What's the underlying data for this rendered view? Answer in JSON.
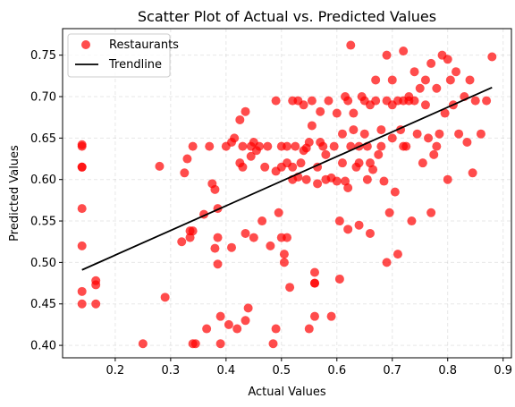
{
  "chart_data": {
    "type": "scatter",
    "title": "Scatter Plot of Actual vs. Predicted Values",
    "xlabel": "Actual Values",
    "ylabel": "Predicted Values",
    "xlim": [
      0.105,
      0.915
    ],
    "ylim": [
      0.385,
      0.782
    ],
    "xticks": [
      0.2,
      0.3,
      0.4,
      0.5,
      0.6,
      0.7,
      0.8,
      0.9
    ],
    "xtick_labels": [
      "0.2",
      "0.3",
      "0.4",
      "0.5",
      "0.6",
      "0.7",
      "0.8",
      "0.9"
    ],
    "yticks": [
      0.4,
      0.45,
      0.5,
      0.55,
      0.6,
      0.65,
      0.7,
      0.75
    ],
    "ytick_labels": [
      "0.40",
      "0.45",
      "0.50",
      "0.55",
      "0.60",
      "0.65",
      "0.70",
      "0.75"
    ],
    "grid": true,
    "legend_position": "top-left",
    "series": [
      {
        "name": "Restaurants",
        "kind": "scatter",
        "color": "#ff0000",
        "points": [
          [
            0.14,
            0.64
          ],
          [
            0.14,
            0.615
          ],
          [
            0.14,
            0.565
          ],
          [
            0.14,
            0.52
          ],
          [
            0.14,
            0.465
          ],
          [
            0.14,
            0.45
          ],
          [
            0.14,
            0.642
          ],
          [
            0.14,
            0.615
          ],
          [
            0.165,
            0.478
          ],
          [
            0.165,
            0.473
          ],
          [
            0.165,
            0.45
          ],
          [
            0.25,
            0.402
          ],
          [
            0.28,
            0.616
          ],
          [
            0.29,
            0.458
          ],
          [
            0.32,
            0.525
          ],
          [
            0.325,
            0.608
          ],
          [
            0.33,
            0.625
          ],
          [
            0.335,
            0.53
          ],
          [
            0.335,
            0.538
          ],
          [
            0.34,
            0.402
          ],
          [
            0.34,
            0.64
          ],
          [
            0.345,
            0.402
          ],
          [
            0.34,
            0.538
          ],
          [
            0.36,
            0.558
          ],
          [
            0.365,
            0.42
          ],
          [
            0.37,
            0.64
          ],
          [
            0.375,
            0.595
          ],
          [
            0.38,
            0.588
          ],
          [
            0.38,
            0.517
          ],
          [
            0.385,
            0.498
          ],
          [
            0.385,
            0.565
          ],
          [
            0.385,
            0.53
          ],
          [
            0.39,
            0.435
          ],
          [
            0.39,
            0.402
          ],
          [
            0.4,
            0.64
          ],
          [
            0.405,
            0.425
          ],
          [
            0.41,
            0.645
          ],
          [
            0.41,
            0.518
          ],
          [
            0.415,
            0.65
          ],
          [
            0.42,
            0.42
          ],
          [
            0.425,
            0.672
          ],
          [
            0.425,
            0.62
          ],
          [
            0.43,
            0.64
          ],
          [
            0.43,
            0.615
          ],
          [
            0.435,
            0.535
          ],
          [
            0.435,
            0.43
          ],
          [
            0.435,
            0.682
          ],
          [
            0.44,
            0.445
          ],
          [
            0.445,
            0.64
          ],
          [
            0.445,
            0.628
          ],
          [
            0.45,
            0.645
          ],
          [
            0.45,
            0.53
          ],
          [
            0.455,
            0.635
          ],
          [
            0.46,
            0.64
          ],
          [
            0.465,
            0.55
          ],
          [
            0.47,
            0.615
          ],
          [
            0.475,
            0.64
          ],
          [
            0.48,
            0.52
          ],
          [
            0.485,
            0.402
          ],
          [
            0.49,
            0.61
          ],
          [
            0.49,
            0.42
          ],
          [
            0.49,
            0.695
          ],
          [
            0.495,
            0.56
          ],
          [
            0.5,
            0.64
          ],
          [
            0.5,
            0.615
          ],
          [
            0.5,
            0.53
          ],
          [
            0.505,
            0.51
          ],
          [
            0.505,
            0.5
          ],
          [
            0.51,
            0.64
          ],
          [
            0.51,
            0.62
          ],
          [
            0.51,
            0.53
          ],
          [
            0.515,
            0.47
          ],
          [
            0.52,
            0.695
          ],
          [
            0.52,
            0.615
          ],
          [
            0.52,
            0.6
          ],
          [
            0.525,
            0.64
          ],
          [
            0.53,
            0.603
          ],
          [
            0.53,
            0.695
          ],
          [
            0.535,
            0.62
          ],
          [
            0.54,
            0.635
          ],
          [
            0.54,
            0.69
          ],
          [
            0.545,
            0.638
          ],
          [
            0.545,
            0.6
          ],
          [
            0.55,
            0.645
          ],
          [
            0.55,
            0.42
          ],
          [
            0.555,
            0.665
          ],
          [
            0.555,
            0.695
          ],
          [
            0.56,
            0.488
          ],
          [
            0.56,
            0.475
          ],
          [
            0.56,
            0.435
          ],
          [
            0.56,
            0.475
          ],
          [
            0.565,
            0.615
          ],
          [
            0.565,
            0.595
          ],
          [
            0.57,
            0.682
          ],
          [
            0.57,
            0.645
          ],
          [
            0.575,
            0.64
          ],
          [
            0.58,
            0.63
          ],
          [
            0.58,
            0.6
          ],
          [
            0.585,
            0.695
          ],
          [
            0.59,
            0.435
          ],
          [
            0.59,
            0.602
          ],
          [
            0.595,
            0.64
          ],
          [
            0.6,
            0.598
          ],
          [
            0.6,
            0.68
          ],
          [
            0.605,
            0.55
          ],
          [
            0.605,
            0.48
          ],
          [
            0.61,
            0.62
          ],
          [
            0.61,
            0.655
          ],
          [
            0.615,
            0.7
          ],
          [
            0.615,
            0.598
          ],
          [
            0.62,
            0.59
          ],
          [
            0.62,
            0.54
          ],
          [
            0.625,
            0.762
          ],
          [
            0.625,
            0.64
          ],
          [
            0.63,
            0.68
          ],
          [
            0.63,
            0.66
          ],
          [
            0.635,
            0.615
          ],
          [
            0.64,
            0.545
          ],
          [
            0.64,
            0.62
          ],
          [
            0.645,
            0.7
          ],
          [
            0.65,
            0.695
          ],
          [
            0.65,
            0.655
          ],
          [
            0.655,
            0.64
          ],
          [
            0.655,
            0.6
          ],
          [
            0.66,
            0.69
          ],
          [
            0.66,
            0.535
          ],
          [
            0.665,
            0.612
          ],
          [
            0.67,
            0.72
          ],
          [
            0.675,
            0.63
          ],
          [
            0.68,
            0.66
          ],
          [
            0.685,
            0.598
          ],
          [
            0.69,
            0.75
          ],
          [
            0.69,
            0.5
          ],
          [
            0.695,
            0.56
          ],
          [
            0.7,
            0.72
          ],
          [
            0.7,
            0.65
          ],
          [
            0.705,
            0.585
          ],
          [
            0.71,
            0.51
          ],
          [
            0.715,
            0.66
          ],
          [
            0.72,
            0.755
          ],
          [
            0.72,
            0.695
          ],
          [
            0.725,
            0.64
          ],
          [
            0.73,
            0.7
          ],
          [
            0.735,
            0.55
          ],
          [
            0.74,
            0.73
          ],
          [
            0.745,
            0.655
          ],
          [
            0.75,
            0.71
          ],
          [
            0.755,
            0.62
          ],
          [
            0.76,
            0.69
          ],
          [
            0.765,
            0.65
          ],
          [
            0.77,
            0.74
          ],
          [
            0.77,
            0.56
          ],
          [
            0.775,
            0.63
          ],
          [
            0.78,
            0.71
          ],
          [
            0.785,
            0.655
          ],
          [
            0.79,
            0.75
          ],
          [
            0.795,
            0.68
          ],
          [
            0.8,
            0.745
          ],
          [
            0.8,
            0.6
          ],
          [
            0.805,
            0.72
          ],
          [
            0.81,
            0.69
          ],
          [
            0.815,
            0.73
          ],
          [
            0.82,
            0.655
          ],
          [
            0.83,
            0.7
          ],
          [
            0.835,
            0.645
          ],
          [
            0.84,
            0.72
          ],
          [
            0.845,
            0.608
          ],
          [
            0.85,
            0.695
          ],
          [
            0.86,
            0.655
          ],
          [
            0.87,
            0.695
          ],
          [
            0.88,
            0.748
          ],
          [
            0.64,
            0.64
          ],
          [
            0.66,
            0.62
          ],
          [
            0.68,
            0.64
          ],
          [
            0.7,
            0.69
          ],
          [
            0.72,
            0.64
          ],
          [
            0.74,
            0.695
          ],
          [
            0.76,
            0.72
          ],
          [
            0.78,
            0.64
          ],
          [
            0.62,
            0.695
          ],
          [
            0.67,
            0.695
          ],
          [
            0.69,
            0.695
          ],
          [
            0.71,
            0.695
          ],
          [
            0.73,
            0.695
          ]
        ]
      },
      {
        "name": "Trendline",
        "kind": "line",
        "color": "#000000",
        "points": [
          [
            0.14,
            0.491
          ],
          [
            0.88,
            0.711
          ]
        ]
      }
    ]
  }
}
